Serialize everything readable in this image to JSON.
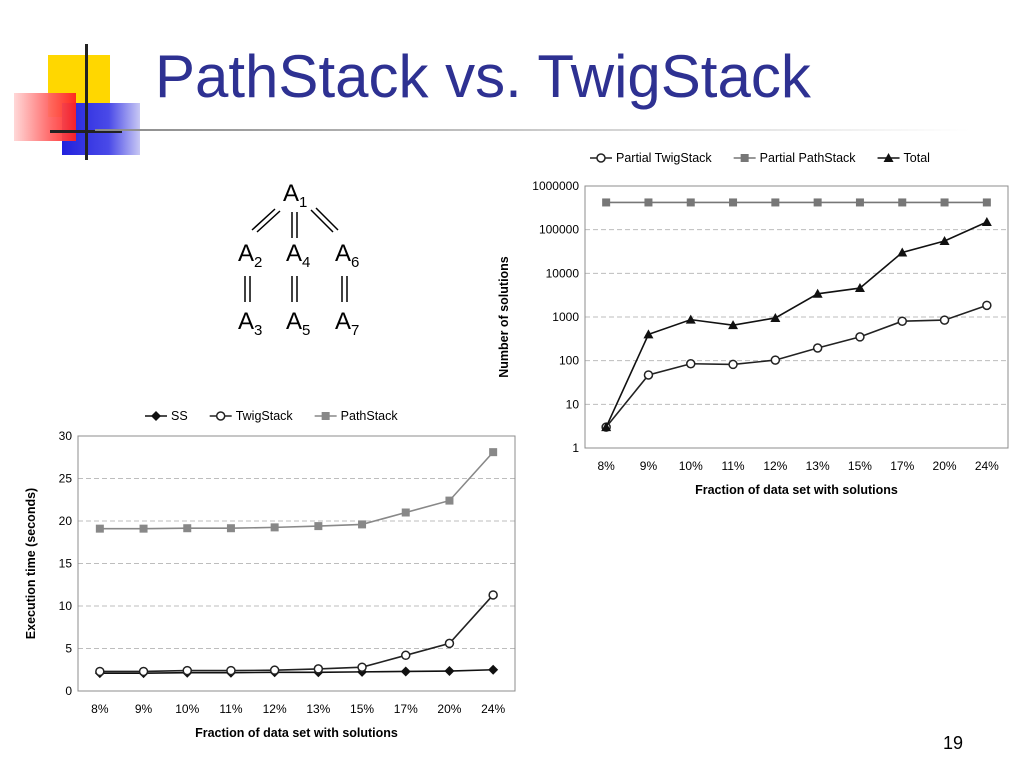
{
  "slide": {
    "title": "PathStack vs. TwigStack",
    "page_number": "19"
  },
  "tree": {
    "nodes": [
      {
        "letter": "A",
        "index": "1"
      },
      {
        "letter": "A",
        "index": "2"
      },
      {
        "letter": "A",
        "index": "4"
      },
      {
        "letter": "A",
        "index": "6"
      },
      {
        "letter": "A",
        "index": "3"
      },
      {
        "letter": "A",
        "index": "5"
      },
      {
        "letter": "A",
        "index": "7"
      }
    ]
  },
  "chart_data": [
    {
      "type": "line",
      "id": "solutions-chart",
      "xlabel": "Fraction of data set with solutions",
      "ylabel": "Number of solutions",
      "yscale": "log",
      "ylim": [
        1,
        1000000
      ],
      "yticks": [
        "1",
        "10",
        "100",
        "1000",
        "10000",
        "100000",
        "1000000"
      ],
      "categories": [
        "8%",
        "9%",
        "10%",
        "11%",
        "12%",
        "13%",
        "15%",
        "17%",
        "20%",
        "24%"
      ],
      "grid": true,
      "legend_position": "top",
      "series": [
        {
          "name": "Partial TwigStack",
          "marker": "circle-open",
          "color": "#222222",
          "values": [
            3,
            47,
            85,
            82,
            103,
            195,
            350,
            800,
            850,
            1850
          ]
        },
        {
          "name": "Partial PathStack",
          "marker": "square",
          "color": "#777777",
          "values": [
            420000,
            420000,
            420000,
            420000,
            420000,
            420000,
            420000,
            420000,
            420000,
            420000
          ]
        },
        {
          "name": "Total",
          "marker": "triangle",
          "color": "#111111",
          "values": [
            3,
            400,
            870,
            650,
            950,
            3400,
            4600,
            30000,
            55000,
            150000
          ]
        }
      ]
    },
    {
      "type": "line",
      "id": "time-chart",
      "xlabel": "Fraction of data set with solutions",
      "ylabel": "Execution time (seconds)",
      "ylim": [
        0,
        30
      ],
      "yticks": [
        "0",
        "5",
        "10",
        "15",
        "20",
        "25",
        "30"
      ],
      "categories": [
        "8%",
        "9%",
        "10%",
        "11%",
        "12%",
        "13%",
        "15%",
        "17%",
        "20%",
        "24%"
      ],
      "grid": true,
      "legend_position": "top",
      "series": [
        {
          "name": "SS",
          "marker": "diamond",
          "color": "#111111",
          "values": [
            2.1,
            2.1,
            2.15,
            2.15,
            2.2,
            2.2,
            2.25,
            2.3,
            2.35,
            2.5
          ]
        },
        {
          "name": "TwigStack",
          "marker": "circle-open",
          "color": "#222222",
          "values": [
            2.3,
            2.3,
            2.4,
            2.4,
            2.45,
            2.6,
            2.8,
            4.2,
            5.6,
            11.3
          ]
        },
        {
          "name": "PathStack",
          "marker": "square",
          "color": "#888888",
          "values": [
            19.1,
            19.1,
            19.15,
            19.15,
            19.25,
            19.4,
            19.6,
            21.0,
            22.4,
            28.1
          ]
        }
      ]
    }
  ]
}
